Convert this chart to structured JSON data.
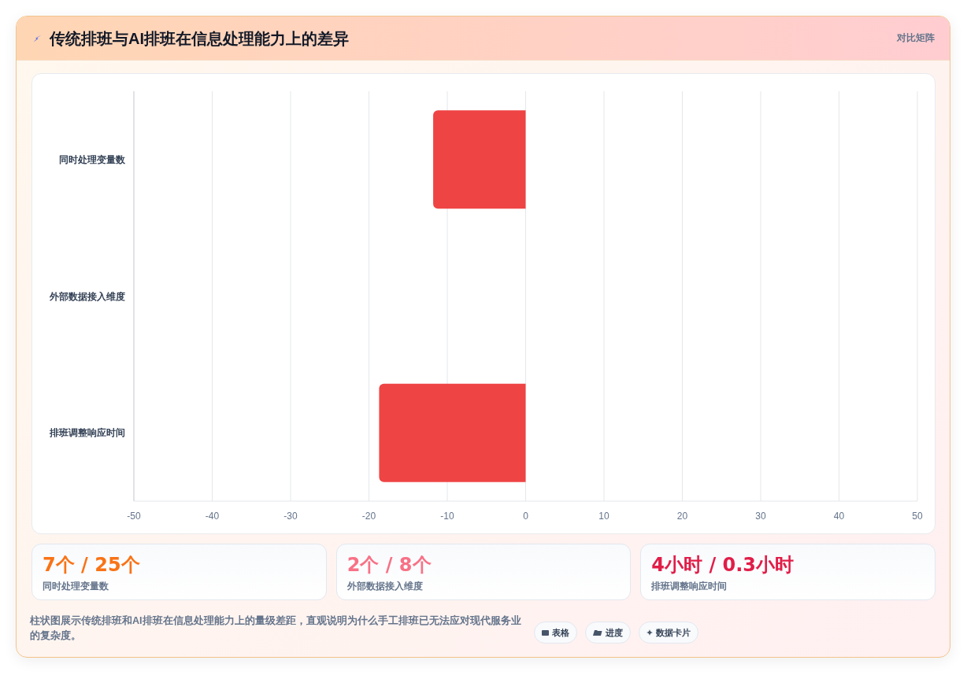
{
  "chart_data": [
    {
      "type": "bar",
      "orientation": "horizontal",
      "title": "传统排班与AI排班在信息处理能力上的差异",
      "categories": [
        "同时处理变量数",
        "外部数据接入维度",
        "排班调整响应时间"
      ],
      "values": [
        -11.8,
        0,
        -18.7
      ],
      "color": "#ef4444",
      "xlim": [
        -50,
        50
      ],
      "xticks": [
        -50,
        -40,
        -30,
        -20,
        -10,
        0,
        10,
        20,
        30,
        40,
        50
      ],
      "grid": "x",
      "annotations": [
        "对比矩阵",
        "柱状图展示传统排班和AI排班在信息处理能力上的量级差距，直观说明为什么手工排班已无法应对现代服务业的复杂度。",
        "表格",
        "进度",
        "数据卡片"
      ]
    },
    {
      "type": "other",
      "categories": [
        "同时处理变量数",
        "外部数据接入维度",
        "排班调整响应时间"
      ],
      "annotations": [
        "7个 / 25个",
        "2个 / 8个",
        "4小时 / 0.3小时"
      ]
    }
  ]
}
